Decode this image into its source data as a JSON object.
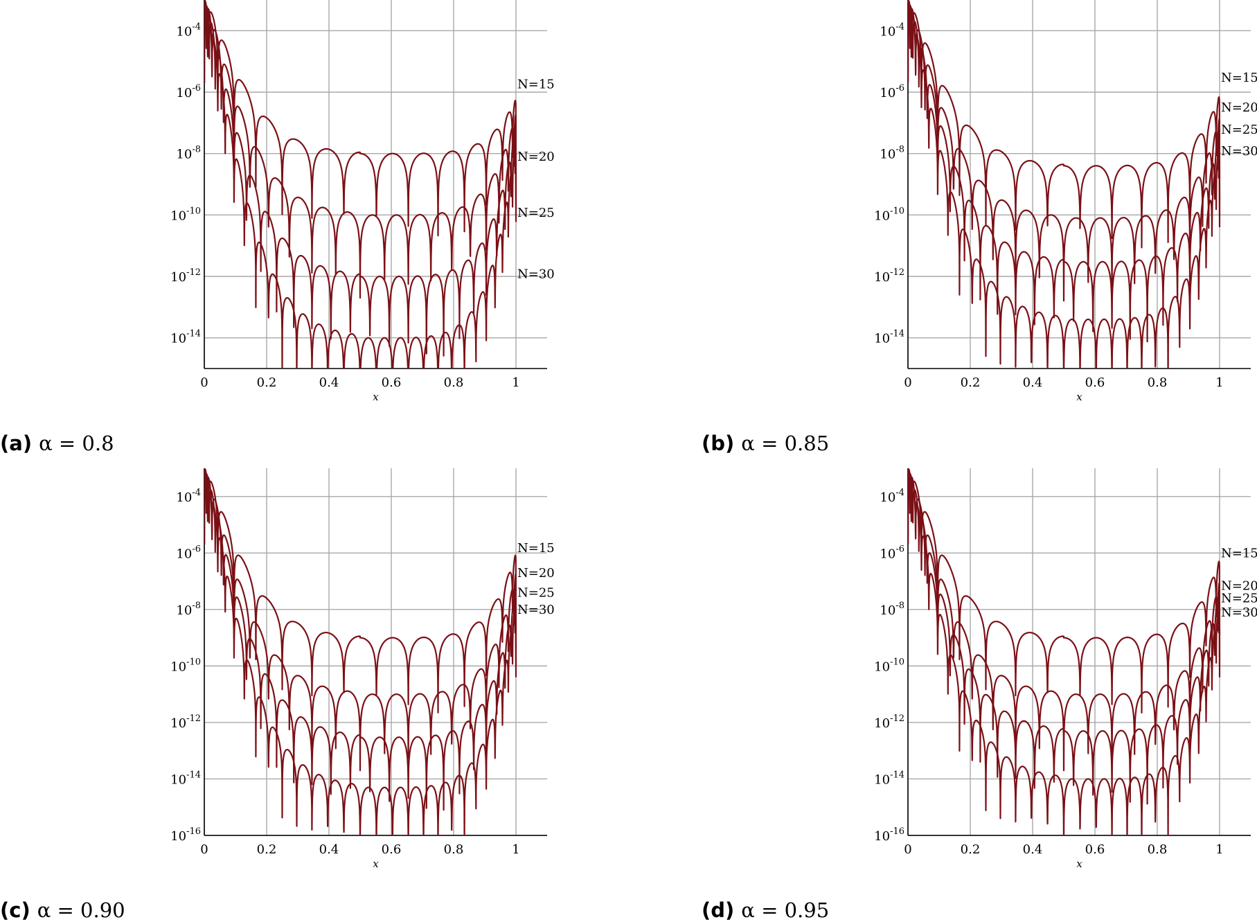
{
  "style": {
    "curve_color": "#7a1016",
    "grid_color": "#a8a8a8"
  },
  "chart_data": [
    {
      "type": "line",
      "yscale": "log",
      "xlim": [
        0,
        1.1
      ],
      "ylim": [
        1e-15,
        0.001
      ],
      "xlabel": "x",
      "xticks": [
        "0",
        "0.2",
        "0.4",
        "0.6",
        "0.8",
        "1"
      ],
      "yticks": [
        {
          "base": "10",
          "exp": "-4"
        },
        {
          "base": "10",
          "exp": "-6"
        },
        {
          "base": "10",
          "exp": "-8"
        },
        {
          "base": "10",
          "exp": "-10"
        },
        {
          "base": "10",
          "exp": "-12"
        },
        {
          "base": "10",
          "exp": "-14"
        }
      ],
      "caption": {
        "letter": "(a)",
        "text": "α = 0.8"
      },
      "series": [
        {
          "name": "N=15",
          "center_level": 1e-08,
          "edge_end_value": 6e-07
        },
        {
          "name": "N=20",
          "center_level": 1e-10,
          "edge_end_value": 2e-07
        },
        {
          "name": "N=25",
          "center_level": 1e-12,
          "edge_end_value": 8e-08
        },
        {
          "name": "N=30",
          "center_level": 1e-14,
          "edge_end_value": 3e-08
        }
      ],
      "grid": true
    },
    {
      "type": "line",
      "yscale": "log",
      "xlim": [
        0,
        1.1
      ],
      "ylim": [
        1e-15,
        0.001
      ],
      "xlabel": "x",
      "xticks": [
        "0",
        "0.2",
        "0.4",
        "0.6",
        "0.8",
        "1"
      ],
      "yticks": [
        {
          "base": "10",
          "exp": "-4"
        },
        {
          "base": "10",
          "exp": "-6"
        },
        {
          "base": "10",
          "exp": "-8"
        },
        {
          "base": "10",
          "exp": "-10"
        },
        {
          "base": "10",
          "exp": "-12"
        },
        {
          "base": "10",
          "exp": "-14"
        }
      ],
      "caption": {
        "letter": "(b)",
        "text": "α = 0.85"
      },
      "series": [
        {
          "name": "N=15",
          "center_level": 4e-09,
          "edge_end_value": 8e-07
        },
        {
          "name": "N=20",
          "center_level": 8e-11,
          "edge_end_value": 1.5e-07
        },
        {
          "name": "N=25",
          "center_level": 3e-12,
          "edge_end_value": 5e-08
        },
        {
          "name": "N=30",
          "center_level": 4e-14,
          "edge_end_value": 2e-08
        }
      ],
      "grid": true
    },
    {
      "type": "line",
      "yscale": "log",
      "xlim": [
        0,
        1.1
      ],
      "ylim": [
        1e-16,
        0.001
      ],
      "xlabel": "x",
      "xticks": [
        "0",
        "0.2",
        "0.4",
        "0.6",
        "0.8",
        "1"
      ],
      "yticks": [
        {
          "base": "10",
          "exp": "-4"
        },
        {
          "base": "10",
          "exp": "-6"
        },
        {
          "base": "10",
          "exp": "-8"
        },
        {
          "base": "10",
          "exp": "-10"
        },
        {
          "base": "10",
          "exp": "-12"
        },
        {
          "base": "10",
          "exp": "-14"
        },
        {
          "base": "10",
          "exp": "-16"
        }
      ],
      "caption": {
        "letter": "(c)",
        "text": "α = 0.90"
      },
      "series": [
        {
          "name": "N=15",
          "center_level": 1e-09,
          "edge_end_value": 1e-06
        },
        {
          "name": "N=20",
          "center_level": 1e-11,
          "edge_end_value": 2e-07
        },
        {
          "name": "N=25",
          "center_level": 3e-13,
          "edge_end_value": 5e-08
        },
        {
          "name": "N=30",
          "center_level": 5e-15,
          "edge_end_value": 2e-08
        }
      ],
      "grid": true
    },
    {
      "type": "line",
      "yscale": "log",
      "xlim": [
        0,
        1.1
      ],
      "ylim": [
        1e-16,
        0.001
      ],
      "xlabel": "x",
      "xticks": [
        "0",
        "0.2",
        "0.4",
        "0.6",
        "0.8",
        "1"
      ],
      "yticks": [
        {
          "base": "10",
          "exp": "-4"
        },
        {
          "base": "10",
          "exp": "-6"
        },
        {
          "base": "10",
          "exp": "-8"
        },
        {
          "base": "10",
          "exp": "-10"
        },
        {
          "base": "10",
          "exp": "-12"
        },
        {
          "base": "10",
          "exp": "-14"
        },
        {
          "base": "10",
          "exp": "-16"
        }
      ],
      "caption": {
        "letter": "(d)",
        "text": "α = 0.95"
      },
      "series": [
        {
          "name": "N=15",
          "center_level": 1e-09,
          "edge_end_value": 6e-07
        },
        {
          "name": "N=20",
          "center_level": 1e-11,
          "edge_end_value": 1e-07
        },
        {
          "name": "N=25",
          "center_level": 5e-13,
          "edge_end_value": 5e-08
        },
        {
          "name": "N=30",
          "center_level": 1e-14,
          "edge_end_value": 2e-08
        }
      ],
      "grid": true
    }
  ]
}
